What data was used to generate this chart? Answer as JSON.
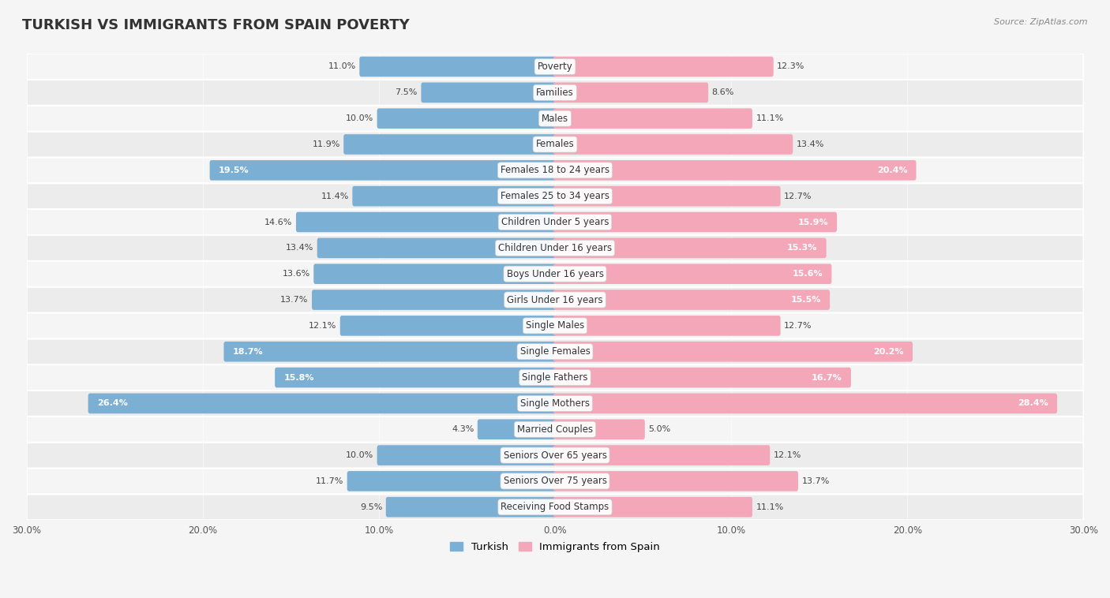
{
  "title": "TURKISH VS IMMIGRANTS FROM SPAIN POVERTY",
  "source": "Source: ZipAtlas.com",
  "categories": [
    "Poverty",
    "Families",
    "Males",
    "Females",
    "Females 18 to 24 years",
    "Females 25 to 34 years",
    "Children Under 5 years",
    "Children Under 16 years",
    "Boys Under 16 years",
    "Girls Under 16 years",
    "Single Males",
    "Single Females",
    "Single Fathers",
    "Single Mothers",
    "Married Couples",
    "Seniors Over 65 years",
    "Seniors Over 75 years",
    "Receiving Food Stamps"
  ],
  "turkish": [
    11.0,
    7.5,
    10.0,
    11.9,
    19.5,
    11.4,
    14.6,
    13.4,
    13.6,
    13.7,
    12.1,
    18.7,
    15.8,
    26.4,
    4.3,
    10.0,
    11.7,
    9.5
  ],
  "spain": [
    12.3,
    8.6,
    11.1,
    13.4,
    20.4,
    12.7,
    15.9,
    15.3,
    15.6,
    15.5,
    12.7,
    20.2,
    16.7,
    28.4,
    5.0,
    12.1,
    13.7,
    11.1
  ],
  "turkish_color": "#7bafd4",
  "spain_color": "#f4a7b9",
  "turkish_label": "Turkish",
  "spain_label": "Immigrants from Spain",
  "xlim": 30.0,
  "background_color": "#f5f5f5",
  "row_light_color": "#ececec",
  "row_dark_color": "#e0e0e0",
  "title_fontsize": 13,
  "label_fontsize": 8.5,
  "value_fontsize": 8.0,
  "axis_fontsize": 8.5
}
